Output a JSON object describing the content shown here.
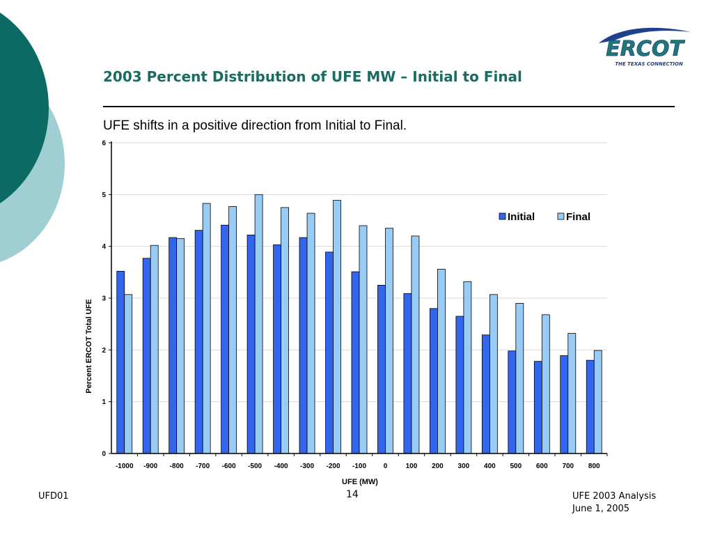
{
  "slide": {
    "title": "2003 Percent Distribution of UFE MW – Initial to Final",
    "subtitle": "UFE  shifts in a positive direction from Initial to Final.",
    "footer_left": "UFD01",
    "page_number": "14",
    "footer_right_line1": "UFE 2003 Analysis",
    "footer_right_line2": "June 1, 2005"
  },
  "logo": {
    "text": "ERCOT",
    "tagline": "THE TEXAS CONNECTION"
  },
  "colors": {
    "title": "#1b6b62",
    "deco_dark": "#0b6a64",
    "deco_light": "#9fcfd2",
    "initial_bar": "#3366ee",
    "final_bar": "#99ccf5"
  },
  "chart_data": {
    "type": "bar",
    "categories": [
      "-1000",
      "-900",
      "-800",
      "-700",
      "-600",
      "-500",
      "-400",
      "-300",
      "-200",
      "-100",
      "0",
      "100",
      "200",
      "300",
      "400",
      "500",
      "600",
      "700",
      "800"
    ],
    "series": [
      {
        "name": "Initial",
        "values": [
          3.52,
          3.77,
          4.17,
          4.31,
          4.41,
          4.22,
          4.03,
          4.17,
          3.89,
          3.51,
          3.25,
          3.09,
          2.8,
          2.65,
          2.29,
          1.98,
          1.78,
          1.89,
          1.8
        ]
      },
      {
        "name": "Final",
        "values": [
          3.07,
          4.02,
          4.15,
          4.83,
          4.77,
          5.0,
          4.75,
          4.64,
          4.89,
          4.4,
          4.35,
          4.2,
          3.56,
          3.32,
          3.07,
          2.9,
          2.68,
          2.32,
          1.99
        ]
      }
    ],
    "title": "",
    "xlabel": "UFE (MW)",
    "ylabel": "Percent ERCOT Total UFE",
    "ylim": [
      0,
      6
    ],
    "yticks": [
      "0",
      "1",
      "2",
      "3",
      "4",
      "5",
      "6"
    ],
    "grid": true,
    "legend": "top-right"
  }
}
